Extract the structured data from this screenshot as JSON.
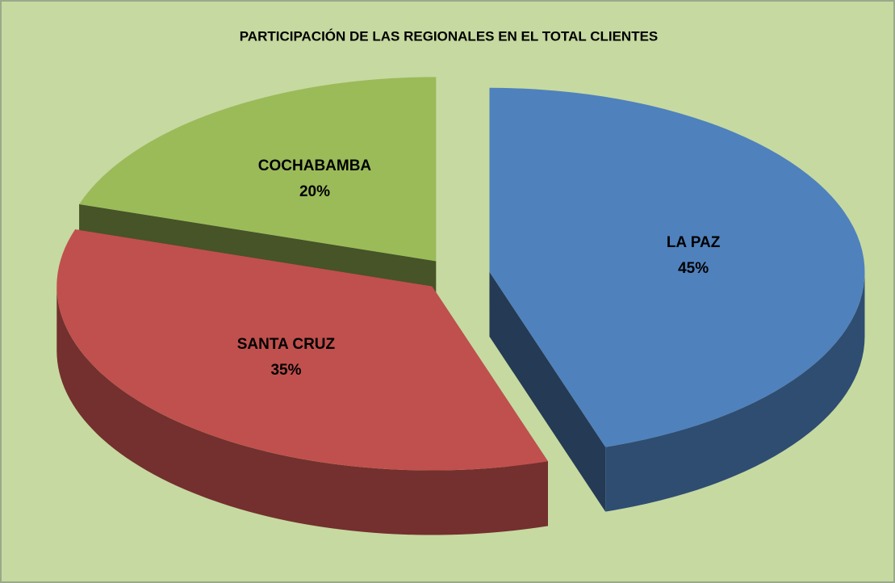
{
  "chart_data": {
    "type": "pie",
    "title": "PARTICIPACIÓN DE LAS REGIONALES EN EL TOTAL CLIENTES",
    "categories": [
      "LA PAZ",
      "SANTA CRUZ",
      "COCHABAMBA"
    ],
    "values": [
      45,
      35,
      20
    ],
    "value_labels": [
      "45%",
      "35%",
      "20%"
    ],
    "colors": [
      "#4f81bd",
      "#c0504d",
      "#9bbb59"
    ]
  }
}
